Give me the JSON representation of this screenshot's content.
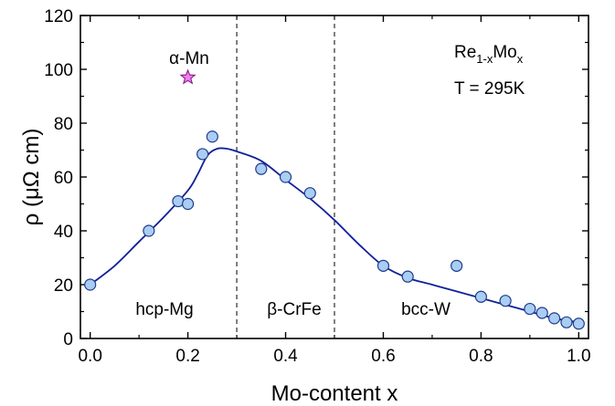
{
  "chart_data": {
    "type": "scatter",
    "xlabel": "Mo-content x",
    "ylabel": "ρ (μΩ cm)",
    "xlim": [
      -0.02,
      1.02
    ],
    "ylim": [
      0,
      120
    ],
    "x_ticks": [
      0.0,
      0.2,
      0.4,
      0.6,
      0.8,
      1.0
    ],
    "x_tick_labels": [
      "0.0",
      "0.2",
      "0.4",
      "0.6",
      "0.8",
      "1.0"
    ],
    "y_ticks": [
      0,
      20,
      40,
      60,
      80,
      100,
      120
    ],
    "y_tick_labels": [
      "0",
      "20",
      "40",
      "60",
      "80",
      "100",
      "120"
    ],
    "grid": false,
    "colors": {
      "points_fill": "#a9cdf3",
      "points_edge": "#1f3c8a",
      "curve": "#10209a",
      "star_fill": "#ee82ee",
      "star_edge": "#8b1a8b"
    },
    "series": [
      {
        "marker": "circle",
        "points": [
          [
            0.0,
            20
          ],
          [
            0.12,
            40
          ],
          [
            0.18,
            51
          ],
          [
            0.2,
            50
          ],
          [
            0.23,
            68.5
          ],
          [
            0.25,
            75
          ],
          [
            0.35,
            63
          ],
          [
            0.4,
            60
          ],
          [
            0.45,
            54
          ],
          [
            0.6,
            27
          ],
          [
            0.65,
            23
          ],
          [
            0.75,
            27
          ],
          [
            0.8,
            15.5
          ],
          [
            0.85,
            14
          ],
          [
            0.9,
            11
          ],
          [
            0.925,
            9.5
          ],
          [
            0.95,
            7.5
          ],
          [
            0.975,
            6
          ],
          [
            1.0,
            5.5
          ]
        ]
      },
      {
        "marker": "star",
        "points": [
          [
            0.2,
            97
          ]
        ]
      }
    ],
    "fit_curve": [
      [
        0.0,
        20
      ],
      [
        0.05,
        27
      ],
      [
        0.1,
        36
      ],
      [
        0.15,
        45
      ],
      [
        0.2,
        55
      ],
      [
        0.22,
        61
      ],
      [
        0.24,
        68
      ],
      [
        0.26,
        70.5
      ],
      [
        0.28,
        70.5
      ],
      [
        0.3,
        69.5
      ],
      [
        0.35,
        66
      ],
      [
        0.4,
        59
      ],
      [
        0.45,
        52
      ],
      [
        0.5,
        44
      ],
      [
        0.55,
        35
      ],
      [
        0.6,
        27
      ],
      [
        0.65,
        22.5
      ],
      [
        0.7,
        20
      ],
      [
        0.75,
        17.5
      ],
      [
        0.8,
        15
      ],
      [
        0.85,
        12.5
      ],
      [
        0.9,
        10
      ],
      [
        0.95,
        7.5
      ],
      [
        1.0,
        6
      ]
    ],
    "phase_boundaries": [
      0.3,
      0.5
    ],
    "annotations": {
      "alpha_mn": "α-Mn",
      "hcp": "hcp-Mg",
      "beta": "β-CrFe",
      "bcc": "bcc-W",
      "formula_base": "Re",
      "formula_sub1": "1-x",
      "formula_mid": "Mo",
      "formula_sub2": "x",
      "temperature": "T = 295K"
    }
  }
}
